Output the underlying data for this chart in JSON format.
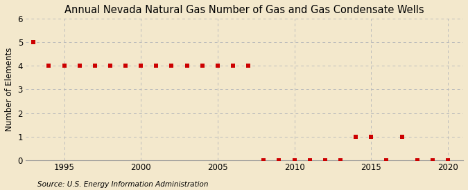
{
  "title": "Annual Nevada Natural Gas Number of Gas and Gas Condensate Wells",
  "ylabel": "Number of Elements",
  "source": "Source: U.S. Energy Information Administration",
  "background_color": "#f3e8cc",
  "years": [
    1993,
    1994,
    1995,
    1996,
    1997,
    1998,
    1999,
    2000,
    2001,
    2002,
    2003,
    2004,
    2005,
    2006,
    2007,
    2008,
    2009,
    2010,
    2011,
    2012,
    2013,
    2014,
    2015,
    2016,
    2017,
    2018,
    2019,
    2020
  ],
  "values": [
    5,
    4,
    4,
    4,
    4,
    4,
    4,
    4,
    4,
    4,
    4,
    4,
    4,
    4,
    4,
    0,
    0,
    0,
    0,
    0,
    0,
    1,
    1,
    0,
    1,
    0,
    0,
    0
  ],
  "dot_color": "#cc0000",
  "dot_size": 14,
  "ylim": [
    0,
    6
  ],
  "yticks": [
    0,
    1,
    2,
    3,
    4,
    5,
    6
  ],
  "xlim": [
    1992.5,
    2021
  ],
  "xticks": [
    1995,
    2000,
    2005,
    2010,
    2015,
    2020
  ],
  "grid_color": "#bbbbbb",
  "title_fontsize": 10.5,
  "axis_fontsize": 8.5,
  "source_fontsize": 7.5,
  "ylabel_fontsize": 8.5
}
